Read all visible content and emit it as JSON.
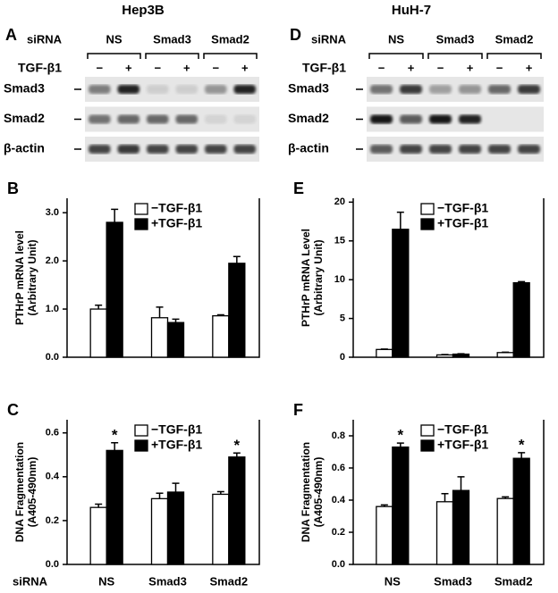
{
  "blots": [
    {
      "panel": "A",
      "title": "Hep3B",
      "siRNA": "siRNA",
      "groups": [
        "NS",
        "Smad3",
        "Smad2"
      ],
      "treatment": "TGF-β1",
      "signs": [
        "−",
        "+"
      ],
      "rows": [
        "Smad3",
        "Smad2",
        "β-actin"
      ]
    },
    {
      "panel": "D",
      "title": "HuH-7",
      "siRNA": "siRNA",
      "groups": [
        "NS",
        "Smad3",
        "Smad2"
      ],
      "treatment": "TGF-β1",
      "signs": [
        "−",
        "+"
      ],
      "rows": [
        "Smad3",
        "Smad2",
        "β-actin"
      ]
    }
  ],
  "chart_data": [
    {
      "type": "bar",
      "panel": "B",
      "ylabel": [
        "PTHrP mRNA level",
        "(Arbitrary Unit)"
      ],
      "categories": [
        null,
        null,
        null
      ],
      "series": [
        {
          "name": "−TGF-β1",
          "color": "#ffffff",
          "values": [
            1.0,
            0.82,
            0.86
          ],
          "errors": [
            0.08,
            0.22,
            0.02
          ]
        },
        {
          "name": "+TGF-β1",
          "color": "#000000",
          "values": [
            2.8,
            0.72,
            1.95
          ],
          "errors": [
            0.27,
            0.07,
            0.14
          ]
        }
      ],
      "ylim": [
        0,
        3.3
      ],
      "yticks": [
        {
          "value": 0,
          "label": "0.0"
        },
        {
          "value": 1,
          "label": "1.0"
        },
        {
          "value": 2,
          "label": "2.0"
        },
        {
          "value": 3,
          "label": "3.0"
        }
      ]
    },
    {
      "type": "bar",
      "panel": "E",
      "ylabel": [
        "PTHrP mRNA Level",
        "(Arbitrary Unit)"
      ],
      "categories": [
        null,
        null,
        null
      ],
      "series": [
        {
          "name": "−TGF-β1",
          "color": "#ffffff",
          "values": [
            1.0,
            0.3,
            0.6
          ],
          "errors": [
            0.05,
            0.05,
            0.05
          ]
        },
        {
          "name": "+TGF-β1",
          "color": "#000000",
          "values": [
            16.5,
            0.4,
            9.6
          ],
          "errors": [
            2.2,
            0.05,
            0.15
          ]
        }
      ],
      "ylim": [
        0,
        20.5
      ],
      "yticks": [
        0,
        5,
        10,
        15,
        20
      ]
    },
    {
      "type": "bar",
      "panel": "C",
      "ylabel": [
        "DNA Fragmentation",
        "(A405-490nm)"
      ],
      "xlabel": "siRNA",
      "categories": [
        "NS",
        "Smad3",
        "Smad2"
      ],
      "series": [
        {
          "name": "−TGF-β1",
          "color": "#ffffff",
          "values": [
            0.26,
            0.3,
            0.32
          ],
          "errors": [
            0.015,
            0.025,
            0.012
          ]
        },
        {
          "name": "+TGF-β1",
          "color": "#000000",
          "values": [
            0.52,
            0.33,
            0.49
          ],
          "errors": [
            0.035,
            0.04,
            0.018
          ]
        }
      ],
      "annotations": [
        {
          "text": "*",
          "category": "NS"
        },
        {
          "text": "*",
          "category": "Smad2"
        }
      ],
      "ylim": [
        0,
        0.66
      ],
      "yticks": [
        {
          "value": 0,
          "label": "0.0"
        },
        {
          "value": 0.2,
          "label": "0.2"
        },
        {
          "value": 0.4,
          "label": "0.4"
        },
        {
          "value": 0.6,
          "label": "0.6"
        }
      ]
    },
    {
      "type": "bar",
      "panel": "F",
      "ylabel": [
        "DNA Fragmentation",
        "(A405-490nm)"
      ],
      "categories": [
        "NS",
        "Smad3",
        "Smad2"
      ],
      "series": [
        {
          "name": "−TGF-β1",
          "color": "#ffffff",
          "values": [
            0.36,
            0.39,
            0.41
          ],
          "errors": [
            0.01,
            0.05,
            0.01
          ]
        },
        {
          "name": "+TGF-β1",
          "color": "#000000",
          "values": [
            0.73,
            0.46,
            0.66
          ],
          "errors": [
            0.025,
            0.085,
            0.035
          ]
        }
      ],
      "annotations": [
        {
          "text": "*",
          "category": "NS"
        },
        {
          "text": "*",
          "category": "Smad2"
        }
      ],
      "ylim": [
        0,
        0.9
      ],
      "yticks": [
        {
          "value": 0,
          "label": "0.0"
        },
        {
          "value": 0.2,
          "label": "0.2"
        },
        {
          "value": 0.4,
          "label": "0.4"
        },
        {
          "value": 0.6,
          "label": "0.6"
        },
        {
          "value": 0.8,
          "label": "0.8"
        }
      ]
    }
  ]
}
